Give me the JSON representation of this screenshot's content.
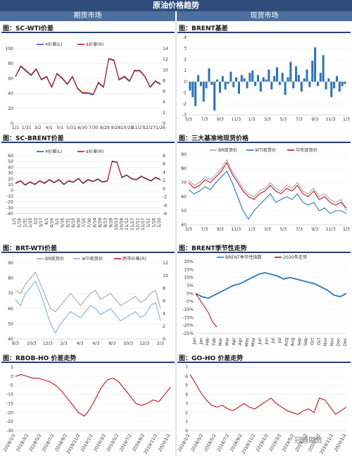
{
  "header": {
    "title": "原油价格趋势",
    "left": "期货市场",
    "right": "现货市场"
  },
  "watermark": "冠通期货",
  "chart_data": [
    {
      "type": "line",
      "title": "图：SC-WTI价差",
      "legend": [
        "¥价差(L)",
        "$价差(R)"
      ],
      "xticks": [
        "1/1",
        "1/31",
        "3/2",
        "4/1",
        "5/1",
        "5/31",
        "6/30",
        "7/30",
        "8/29",
        "9/28",
        "10/28",
        "11/27",
        "12/27",
        "1/26"
      ],
      "yticks_left": [
        "0",
        "20",
        "40",
        "60",
        "80",
        "100"
      ],
      "yticks_right": [
        "0",
        "2",
        "4",
        "6",
        "8",
        "10",
        "12",
        "14"
      ],
      "ylim": [
        0,
        100
      ],
      "series": [
        {
          "name": "¥价差(L)",
          "color": "#2a5fb0",
          "values": [
            62,
            76,
            70,
            64,
            72,
            58,
            62,
            48,
            66,
            60,
            52,
            62,
            46,
            40,
            40,
            38,
            54,
            48,
            86,
            84,
            58,
            62,
            56,
            70,
            70,
            62,
            48,
            56,
            52
          ]
        },
        {
          "name": "$价差(R)",
          "color": "#c0121b",
          "values": [
            63,
            77,
            71,
            65,
            73,
            59,
            63,
            49,
            67,
            61,
            53,
            63,
            47,
            41,
            41,
            39,
            55,
            49,
            87,
            85,
            59,
            63,
            57,
            71,
            71,
            63,
            49,
            57,
            53
          ]
        }
      ]
    },
    {
      "type": "bar",
      "title": "图：BRENT基差",
      "xticks": [
        "5/3",
        "7/3",
        "9/3",
        "11/3",
        "1/3",
        "3/3",
        "5/3",
        "7/3",
        "9/3",
        "11/3",
        "1/3"
      ],
      "yticks_left": [
        "-3",
        "-2",
        "-1",
        "0",
        "1",
        "2",
        "3",
        "4"
      ],
      "ylim": [
        -3,
        4
      ],
      "series": [
        {
          "name": "",
          "color": "#2e75b6",
          "values": [
            -0.8,
            -1.4,
            -2.2,
            0.6,
            -0.4,
            -1.8,
            -0.6,
            1.2,
            -0.3,
            -2.6,
            0.2,
            -1.0,
            0.5,
            -0.7,
            -0.2,
            0.9,
            -0.5,
            0.4,
            -1.1,
            0.6,
            0.3,
            -0.6,
            0.8,
            1.0,
            -0.4,
            0.6,
            -0.9,
            0.4,
            0.2,
            1.1,
            -0.7,
            0.5,
            1.3,
            -0.3,
            0.8,
            -1.2,
            0.4,
            1.8,
            -0.6,
            1.4,
            0.6,
            -0.9,
            0.3,
            1.1,
            -0.5,
            1.9,
            3.1,
            -0.4,
            0.8,
            2.4,
            -0.7,
            0.3,
            -1.4,
            -0.6,
            0.5,
            -0.9,
            -0.4,
            -0.2
          ]
        }
      ]
    },
    {
      "type": "line",
      "title": "图：SC-BRENT价差",
      "legend": [
        "¥价差(L)",
        "$价差(R)"
      ],
      "xticks": [
        "1/1",
        "1/16",
        "1/31",
        "2/15",
        "3/2",
        "3/17",
        "4/1",
        "4/16",
        "5/1",
        "5/16",
        "5/31",
        "6/15",
        "6/30",
        "7/15",
        "7/30",
        "8/14",
        "8/29",
        "9/13",
        "9/28",
        "10/13",
        "10/28",
        "11/12",
        "11/27",
        "12/12",
        "12/27",
        "1/11",
        "1/26",
        "2/10"
      ],
      "yticks_left": [
        "-40",
        "-30",
        "-20",
        "-10",
        "0",
        "10",
        "20",
        "30",
        "40",
        "50",
        "60"
      ],
      "yticks_right": [
        "-6",
        "-4",
        "-2",
        "0",
        "2",
        "4",
        "6",
        "8"
      ],
      "ylim": [
        -40,
        60
      ],
      "series": [
        {
          "name": "¥价差(L)",
          "color": "#2a5fb0",
          "values": [
            12,
            16,
            9,
            14,
            10,
            16,
            12,
            18,
            13,
            18,
            10,
            16,
            14,
            20,
            12,
            18,
            15,
            19,
            14,
            16,
            50,
            48,
            22,
            26,
            20,
            18,
            24,
            20,
            16,
            22,
            18
          ]
        },
        {
          "name": "$价差(R)",
          "color": "#c0121b",
          "values": [
            13,
            17,
            10,
            15,
            11,
            17,
            13,
            19,
            14,
            19,
            11,
            17,
            15,
            21,
            13,
            19,
            16,
            20,
            15,
            17,
            51,
            49,
            23,
            27,
            21,
            19,
            25,
            21,
            17,
            23,
            19
          ]
        }
      ]
    },
    {
      "type": "line",
      "title": "图：三大基准地现货价格",
      "legend": [
        "BR现货价",
        "WTI现货价",
        "中东现货价"
      ],
      "xticks": [
        "5/3",
        "7/3",
        "9/3",
        "11/3",
        "1/3",
        "3/3",
        "5/3",
        "7/3",
        "9/3",
        "11/3",
        "1/3"
      ],
      "yticks_left": [
        "40",
        "50",
        "60",
        "70",
        "80",
        "90"
      ],
      "ylim": [
        40,
        90
      ],
      "series": [
        {
          "name": "BR现货价",
          "color": "#a6a6a6",
          "values": [
            72,
            68,
            70,
            74,
            72,
            76,
            80,
            86,
            78,
            72,
            66,
            62,
            60,
            64,
            66,
            70,
            66,
            64,
            68,
            66,
            70,
            64,
            62,
            66,
            60,
            62,
            58,
            56,
            58,
            50
          ]
        },
        {
          "name": "WTI现货价",
          "color": "#2e75b6",
          "values": [
            65,
            62,
            64,
            67,
            65,
            70,
            74,
            78,
            70,
            60,
            50,
            44,
            50,
            54,
            58,
            62,
            56,
            58,
            60,
            58,
            62,
            56,
            54,
            56,
            50,
            52,
            48,
            50,
            50,
            48
          ]
        },
        {
          "name": "中东现货价",
          "color": "#c0121b",
          "values": [
            70,
            66,
            68,
            72,
            70,
            74,
            78,
            84,
            76,
            70,
            64,
            60,
            58,
            62,
            64,
            68,
            64,
            62,
            66,
            64,
            68,
            62,
            60,
            64,
            58,
            60,
            56,
            54,
            56,
            52
          ]
        }
      ]
    },
    {
      "type": "line",
      "title": "图：BRT-WTI价差",
      "legend": [
        "BR现货价",
        "WTI现货价",
        "跨市价差(R)"
      ],
      "xticks": [
        "8/3",
        "10/3",
        "12/3",
        "2/3",
        "4/3",
        "6/3",
        "8/3",
        "10/3",
        "12/3",
        "2/3"
      ],
      "yticks_left": [
        "40",
        "50",
        "60",
        "70",
        "80",
        "90"
      ],
      "yticks_right": [
        "0",
        "2",
        "4",
        "6",
        "8",
        "10",
        "12"
      ],
      "ylim": [
        40,
        90
      ],
      "series": [
        {
          "name": "BR现货价",
          "color": "#a6a6a6",
          "values": [
            72,
            70,
            76,
            80,
            84,
            76,
            68,
            60,
            58,
            62,
            66,
            70,
            66,
            62,
            66,
            70,
            72,
            66,
            68,
            70,
            66,
            62,
            64,
            66,
            68,
            64,
            66,
            70,
            72,
            60
          ]
        },
        {
          "name": "WTI现货价",
          "color": "#7fb2e0",
          "values": [
            66,
            62,
            70,
            74,
            78,
            70,
            60,
            50,
            44,
            50,
            54,
            58,
            56,
            54,
            58,
            62,
            60,
            56,
            58,
            60,
            56,
            52,
            54,
            56,
            58,
            54,
            56,
            62,
            64,
            52
          ]
        },
        {
          "name": "跨市价差(R)",
          "color": "#c0121b",
          "values": [
            5,
            6,
            8,
            9,
            8,
            7,
            6,
            9,
            10,
            9,
            7,
            8,
            9,
            8,
            7,
            6,
            5,
            7,
            9,
            10,
            8,
            6,
            5,
            4,
            4,
            5,
            4,
            5,
            6,
            4
          ]
        }
      ]
    },
    {
      "type": "line",
      "title": "图：BRENT季节性走势",
      "legend": [
        "BRENT季节性指数",
        "2020年走势"
      ],
      "xticks": [
        "Jan",
        "Jan",
        "Feb",
        "Feb",
        "Mar",
        "Mar",
        "Apr",
        "Apr",
        "May",
        "May",
        "Jun",
        "Jun",
        "Jul",
        "Jul",
        "Aug",
        "Aug",
        "Sep",
        "Sep",
        "Oct",
        "Oct",
        "Nov",
        "Nov",
        "Dec",
        "Dec"
      ],
      "yticks_left": [
        "-25%",
        "-20%",
        "-15%",
        "-10%",
        "-5%",
        "0%",
        "5%",
        "10%",
        "15%",
        "20%"
      ],
      "ylim": [
        -25,
        20
      ],
      "series": [
        {
          "name": "BRENT季节性指数",
          "color": "#2e75b6",
          "values": [
            0,
            -2,
            -3,
            -1,
            1,
            3,
            5,
            6,
            8,
            10,
            12,
            13,
            12,
            11,
            9,
            10,
            9,
            8,
            7,
            6,
            4,
            2,
            -1,
            -2,
            0
          ]
        },
        {
          "name": "2020年走势",
          "color": "#c0121b",
          "values": [
            0,
            -4,
            -8,
            -12,
            -18,
            -21
          ]
        }
      ]
    },
    {
      "type": "line",
      "title": "图：RBOB-HO 价差走势",
      "xticks": [
        "2018/1/2",
        "2018/3/2",
        "2018/5/2",
        "2018/7/2",
        "2018/9/2",
        "2018/11/2",
        "2019/1/2",
        "2019/3/2",
        "2019/5/2",
        "2019/7/2",
        "2019/9/2",
        "2019/11/2",
        "2020/1/2"
      ],
      "yticks_left": [
        "-30",
        "-25",
        "-20",
        "-15",
        "-10",
        "-5",
        "0",
        "5"
      ],
      "ylim": [
        -30,
        5
      ],
      "series": [
        {
          "name": "",
          "color": "#c0121b",
          "values": [
            0,
            1,
            0,
            -1,
            -1,
            -2,
            -3,
            -5,
            -8,
            -12,
            -16,
            -20,
            -22,
            -18,
            -12,
            -6,
            -2,
            -1,
            -3,
            -7,
            -11,
            -15,
            -16,
            -15,
            -13,
            -14,
            -10,
            -6
          ]
        }
      ]
    },
    {
      "type": "line",
      "title": "图：GO-HO 价差走势",
      "xticks": [
        "2018/1/2",
        "2018/3/2",
        "2018/5/2",
        "2018/7/2",
        "2018/9/2",
        "2018/11/2",
        "2019/1/2",
        "2019/3/2",
        "2019/5/2",
        "2019/7/2",
        "2019/9/2",
        "2019/11/2",
        "2020/1/2"
      ],
      "yticks_left": [
        "0",
        "1",
        "2",
        "3",
        "4",
        "5",
        "6",
        "7"
      ],
      "ylim": [
        0,
        7
      ],
      "series": [
        {
          "name": "",
          "color": "#c0121b",
          "values": [
            6.2,
            5.2,
            4.2,
            3.4,
            2.8,
            2.6,
            2.8,
            2.4,
            2.2,
            2.6,
            3.0,
            2.6,
            2.4,
            2.8,
            3.2,
            3.6,
            3.0,
            2.6,
            2.2,
            2.0,
            1.8,
            2.2,
            2.4,
            2.0,
            3.6,
            3.4,
            2.6,
            1.8,
            2.2,
            2.6
          ]
        }
      ]
    }
  ]
}
